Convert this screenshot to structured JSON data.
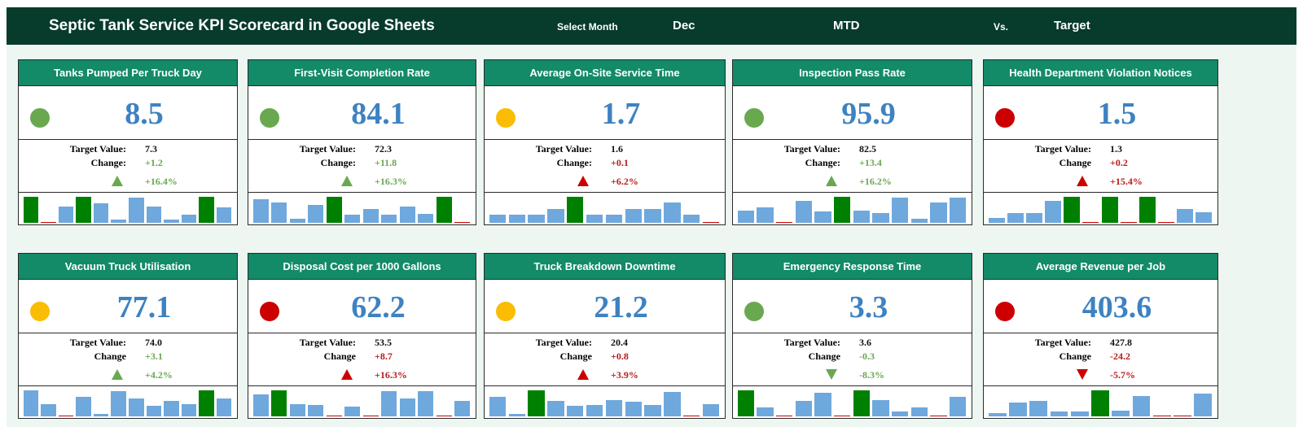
{
  "header": {
    "title": "Septic Tank Service KPI Scorecard in Google Sheets",
    "select_label": "Select Month",
    "month": "Dec",
    "mode": "MTD",
    "vs": "Vs.",
    "compare": "Target"
  },
  "colors": {
    "good": "#6aa84f",
    "warn": "#fbbc04",
    "bad": "#cc0000",
    "bar_normal": "#6fa8dc",
    "bar_high": "#008000",
    "bar_low": "#cc0000"
  },
  "cards": [
    {
      "title": "Tanks Pumped Per Truck Day",
      "status": "green",
      "value": "8.5",
      "target_label": "Target Value:",
      "target": "7.3",
      "change_label": "Change:",
      "change": "+1.2",
      "pct": "+16.4%",
      "direction": "up",
      "trend": "positive",
      "spark": [
        {
          "v": 0.95,
          "t": "high"
        },
        {
          "v": 0.02,
          "t": "low"
        },
        {
          "v": 0.6,
          "t": "normal"
        },
        {
          "v": 0.95,
          "t": "high"
        },
        {
          "v": 0.7,
          "t": "normal"
        },
        {
          "v": 0.12,
          "t": "normal"
        },
        {
          "v": 0.9,
          "t": "normal"
        },
        {
          "v": 0.6,
          "t": "normal"
        },
        {
          "v": 0.12,
          "t": "normal"
        },
        {
          "v": 0.3,
          "t": "normal"
        },
        {
          "v": 0.95,
          "t": "high"
        },
        {
          "v": 0.55,
          "t": "normal"
        }
      ]
    },
    {
      "title": "First-Visit Completion Rate",
      "status": "green",
      "value": "84.1",
      "target_label": "Target Value:",
      "target": "72.3",
      "change_label": "Change:",
      "change": "+11.8",
      "pct": "+16.3%",
      "direction": "up",
      "trend": "positive",
      "spark": [
        {
          "v": 0.85,
          "t": "normal"
        },
        {
          "v": 0.75,
          "t": "normal"
        },
        {
          "v": 0.15,
          "t": "normal"
        },
        {
          "v": 0.65,
          "t": "normal"
        },
        {
          "v": 0.95,
          "t": "high"
        },
        {
          "v": 0.28,
          "t": "normal"
        },
        {
          "v": 0.5,
          "t": "normal"
        },
        {
          "v": 0.28,
          "t": "normal"
        },
        {
          "v": 0.6,
          "t": "normal"
        },
        {
          "v": 0.33,
          "t": "normal"
        },
        {
          "v": 0.95,
          "t": "high"
        },
        {
          "v": 0.02,
          "t": "low"
        }
      ]
    },
    {
      "title": "Average On-Site Service Time",
      "status": "yellow",
      "value": "1.7",
      "target_label": "Target Value:",
      "target": "1.6",
      "change_label": "Change:",
      "change": "+0.1",
      "pct": "+6.2%",
      "direction": "up",
      "trend": "negative",
      "spark": [
        {
          "v": 0.28,
          "t": "normal"
        },
        {
          "v": 0.28,
          "t": "normal"
        },
        {
          "v": 0.28,
          "t": "normal"
        },
        {
          "v": 0.5,
          "t": "normal"
        },
        {
          "v": 0.95,
          "t": "high"
        },
        {
          "v": 0.28,
          "t": "normal"
        },
        {
          "v": 0.28,
          "t": "normal"
        },
        {
          "v": 0.5,
          "t": "normal"
        },
        {
          "v": 0.5,
          "t": "normal"
        },
        {
          "v": 0.75,
          "t": "normal"
        },
        {
          "v": 0.28,
          "t": "normal"
        },
        {
          "v": 0.02,
          "t": "low"
        }
      ]
    },
    {
      "title": "Inspection Pass Rate",
      "status": "green",
      "value": "95.9",
      "target_label": "Target Value:",
      "target": "82.5",
      "change_label": "Change:",
      "change": "+13.4",
      "pct": "+16.2%",
      "direction": "up",
      "trend": "positive",
      "spark": [
        {
          "v": 0.45,
          "t": "normal"
        },
        {
          "v": 0.55,
          "t": "normal"
        },
        {
          "v": 0.02,
          "t": "low"
        },
        {
          "v": 0.8,
          "t": "normal"
        },
        {
          "v": 0.4,
          "t": "normal"
        },
        {
          "v": 0.95,
          "t": "high"
        },
        {
          "v": 0.45,
          "t": "normal"
        },
        {
          "v": 0.35,
          "t": "normal"
        },
        {
          "v": 0.9,
          "t": "normal"
        },
        {
          "v": 0.15,
          "t": "normal"
        },
        {
          "v": 0.75,
          "t": "normal"
        },
        {
          "v": 0.92,
          "t": "normal"
        }
      ]
    },
    {
      "title": "Health Department Violation Notices",
      "status": "red",
      "value": "1.5",
      "target_label": "Target Value:",
      "target": "1.3",
      "change_label": "Change",
      "change": "+0.2",
      "pct": "+15.4%",
      "direction": "up",
      "trend": "negative",
      "spark": [
        {
          "v": 0.18,
          "t": "normal"
        },
        {
          "v": 0.35,
          "t": "normal"
        },
        {
          "v": 0.35,
          "t": "normal"
        },
        {
          "v": 0.8,
          "t": "normal"
        },
        {
          "v": 0.95,
          "t": "high"
        },
        {
          "v": 0.02,
          "t": "low"
        },
        {
          "v": 0.95,
          "t": "high"
        },
        {
          "v": 0.02,
          "t": "low"
        },
        {
          "v": 0.95,
          "t": "high"
        },
        {
          "v": 0.02,
          "t": "low"
        },
        {
          "v": 0.5,
          "t": "normal"
        },
        {
          "v": 0.38,
          "t": "normal"
        }
      ]
    },
    {
      "title": "Vacuum Truck Utilisation",
      "status": "yellow",
      "value": "77.1",
      "target_label": "Target Value:",
      "target": "74.0",
      "change_label": "Change",
      "change": "+3.1",
      "pct": "+4.2%",
      "direction": "up",
      "trend": "positive",
      "spark": [
        {
          "v": 0.95,
          "t": "normal"
        },
        {
          "v": 0.45,
          "t": "normal"
        },
        {
          "v": 0.02,
          "t": "low"
        },
        {
          "v": 0.7,
          "t": "normal"
        },
        {
          "v": 0.08,
          "t": "normal"
        },
        {
          "v": 0.92,
          "t": "normal"
        },
        {
          "v": 0.65,
          "t": "normal"
        },
        {
          "v": 0.38,
          "t": "normal"
        },
        {
          "v": 0.55,
          "t": "normal"
        },
        {
          "v": 0.45,
          "t": "normal"
        },
        {
          "v": 0.95,
          "t": "high"
        },
        {
          "v": 0.65,
          "t": "normal"
        }
      ]
    },
    {
      "title": "Disposal Cost per 1000 Gallons",
      "status": "red",
      "value": "62.2",
      "target_label": "Target Value:",
      "target": "53.5",
      "change_label": "Change",
      "change": "+8.7",
      "pct": "+16.3%",
      "direction": "up",
      "trend": "negative",
      "spark": [
        {
          "v": 0.8,
          "t": "normal"
        },
        {
          "v": 0.95,
          "t": "high"
        },
        {
          "v": 0.45,
          "t": "normal"
        },
        {
          "v": 0.4,
          "t": "normal"
        },
        {
          "v": 0.02,
          "t": "low"
        },
        {
          "v": 0.35,
          "t": "normal"
        },
        {
          "v": 0.02,
          "t": "low"
        },
        {
          "v": 0.9,
          "t": "normal"
        },
        {
          "v": 0.65,
          "t": "normal"
        },
        {
          "v": 0.92,
          "t": "normal"
        },
        {
          "v": 0.02,
          "t": "low"
        },
        {
          "v": 0.55,
          "t": "normal"
        }
      ]
    },
    {
      "title": "Truck Breakdown Downtime",
      "status": "yellow",
      "value": "21.2",
      "target_label": "Target Value:",
      "target": "20.4",
      "change_label": "Change",
      "change": "+0.8",
      "pct": "+3.9%",
      "direction": "up",
      "trend": "negative",
      "spark": [
        {
          "v": 0.7,
          "t": "normal"
        },
        {
          "v": 0.08,
          "t": "normal"
        },
        {
          "v": 0.95,
          "t": "high"
        },
        {
          "v": 0.55,
          "t": "normal"
        },
        {
          "v": 0.38,
          "t": "normal"
        },
        {
          "v": 0.42,
          "t": "normal"
        },
        {
          "v": 0.6,
          "t": "normal"
        },
        {
          "v": 0.52,
          "t": "normal"
        },
        {
          "v": 0.42,
          "t": "normal"
        },
        {
          "v": 0.88,
          "t": "normal"
        },
        {
          "v": 0.02,
          "t": "low"
        },
        {
          "v": 0.45,
          "t": "normal"
        }
      ]
    },
    {
      "title": "Emergency Response Time",
      "status": "green",
      "value": "3.3",
      "target_label": "Target Value:",
      "target": "3.6",
      "change_label": "Change",
      "change": "-0.3",
      "pct": "-8.3%",
      "direction": "down",
      "trend": "positive",
      "spark": [
        {
          "v": 0.95,
          "t": "high"
        },
        {
          "v": 0.32,
          "t": "normal"
        },
        {
          "v": 0.02,
          "t": "low"
        },
        {
          "v": 0.55,
          "t": "normal"
        },
        {
          "v": 0.85,
          "t": "normal"
        },
        {
          "v": 0.02,
          "t": "low"
        },
        {
          "v": 0.95,
          "t": "high"
        },
        {
          "v": 0.6,
          "t": "normal"
        },
        {
          "v": 0.18,
          "t": "normal"
        },
        {
          "v": 0.32,
          "t": "normal"
        },
        {
          "v": 0.02,
          "t": "low"
        },
        {
          "v": 0.72,
          "t": "normal"
        }
      ]
    },
    {
      "title": "Average Revenue per Job",
      "status": "red",
      "value": "403.6",
      "target_label": "Target Value:",
      "target": "427.8",
      "change_label": "Change",
      "change": "-24.2",
      "pct": "-5.7%",
      "direction": "down",
      "trend": "negative",
      "spark": [
        {
          "v": 0.12,
          "t": "normal"
        },
        {
          "v": 0.5,
          "t": "normal"
        },
        {
          "v": 0.55,
          "t": "normal"
        },
        {
          "v": 0.18,
          "t": "normal"
        },
        {
          "v": 0.18,
          "t": "normal"
        },
        {
          "v": 0.95,
          "t": "high"
        },
        {
          "v": 0.22,
          "t": "normal"
        },
        {
          "v": 0.75,
          "t": "normal"
        },
        {
          "v": 0.02,
          "t": "low"
        },
        {
          "v": 0.02,
          "t": "low"
        },
        {
          "v": 0.82,
          "t": "normal"
        }
      ]
    }
  ]
}
